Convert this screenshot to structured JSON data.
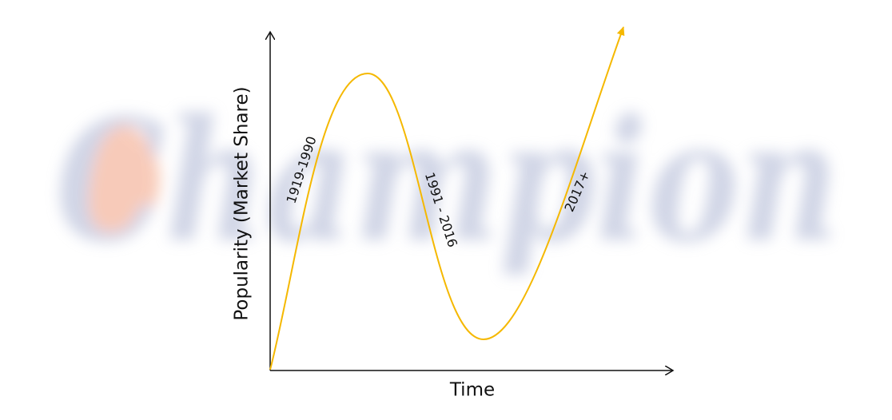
{
  "watermark": "Champion",
  "axes": {
    "y_label": "Popularity (Market Share)",
    "x_label": "Time"
  },
  "phases": [
    "1919-1990",
    "1991 - 2016",
    "2017+"
  ]
}
